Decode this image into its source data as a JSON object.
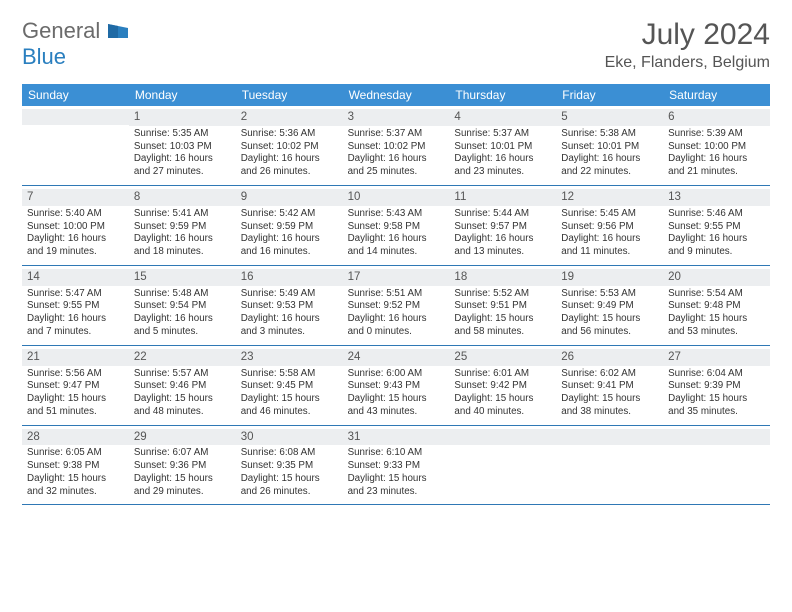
{
  "logo": {
    "text1": "General",
    "text2": "Blue"
  },
  "title": "July 2024",
  "location": "Eke, Flanders, Belgium",
  "weekdays": [
    "Sunday",
    "Monday",
    "Tuesday",
    "Wednesday",
    "Thursday",
    "Friday",
    "Saturday"
  ],
  "colors": {
    "header_bg": "#3b8fd4",
    "header_text": "#ffffff",
    "daynum_bg": "#eceef0",
    "border": "#2f78b5",
    "body_text": "#333333"
  },
  "weeks": [
    [
      null,
      {
        "n": "1",
        "sr": "Sunrise: 5:35 AM",
        "ss": "Sunset: 10:03 PM",
        "d1": "Daylight: 16 hours",
        "d2": "and 27 minutes."
      },
      {
        "n": "2",
        "sr": "Sunrise: 5:36 AM",
        "ss": "Sunset: 10:02 PM",
        "d1": "Daylight: 16 hours",
        "d2": "and 26 minutes."
      },
      {
        "n": "3",
        "sr": "Sunrise: 5:37 AM",
        "ss": "Sunset: 10:02 PM",
        "d1": "Daylight: 16 hours",
        "d2": "and 25 minutes."
      },
      {
        "n": "4",
        "sr": "Sunrise: 5:37 AM",
        "ss": "Sunset: 10:01 PM",
        "d1": "Daylight: 16 hours",
        "d2": "and 23 minutes."
      },
      {
        "n": "5",
        "sr": "Sunrise: 5:38 AM",
        "ss": "Sunset: 10:01 PM",
        "d1": "Daylight: 16 hours",
        "d2": "and 22 minutes."
      },
      {
        "n": "6",
        "sr": "Sunrise: 5:39 AM",
        "ss": "Sunset: 10:00 PM",
        "d1": "Daylight: 16 hours",
        "d2": "and 21 minutes."
      }
    ],
    [
      {
        "n": "7",
        "sr": "Sunrise: 5:40 AM",
        "ss": "Sunset: 10:00 PM",
        "d1": "Daylight: 16 hours",
        "d2": "and 19 minutes."
      },
      {
        "n": "8",
        "sr": "Sunrise: 5:41 AM",
        "ss": "Sunset: 9:59 PM",
        "d1": "Daylight: 16 hours",
        "d2": "and 18 minutes."
      },
      {
        "n": "9",
        "sr": "Sunrise: 5:42 AM",
        "ss": "Sunset: 9:59 PM",
        "d1": "Daylight: 16 hours",
        "d2": "and 16 minutes."
      },
      {
        "n": "10",
        "sr": "Sunrise: 5:43 AM",
        "ss": "Sunset: 9:58 PM",
        "d1": "Daylight: 16 hours",
        "d2": "and 14 minutes."
      },
      {
        "n": "11",
        "sr": "Sunrise: 5:44 AM",
        "ss": "Sunset: 9:57 PM",
        "d1": "Daylight: 16 hours",
        "d2": "and 13 minutes."
      },
      {
        "n": "12",
        "sr": "Sunrise: 5:45 AM",
        "ss": "Sunset: 9:56 PM",
        "d1": "Daylight: 16 hours",
        "d2": "and 11 minutes."
      },
      {
        "n": "13",
        "sr": "Sunrise: 5:46 AM",
        "ss": "Sunset: 9:55 PM",
        "d1": "Daylight: 16 hours",
        "d2": "and 9 minutes."
      }
    ],
    [
      {
        "n": "14",
        "sr": "Sunrise: 5:47 AM",
        "ss": "Sunset: 9:55 PM",
        "d1": "Daylight: 16 hours",
        "d2": "and 7 minutes."
      },
      {
        "n": "15",
        "sr": "Sunrise: 5:48 AM",
        "ss": "Sunset: 9:54 PM",
        "d1": "Daylight: 16 hours",
        "d2": "and 5 minutes."
      },
      {
        "n": "16",
        "sr": "Sunrise: 5:49 AM",
        "ss": "Sunset: 9:53 PM",
        "d1": "Daylight: 16 hours",
        "d2": "and 3 minutes."
      },
      {
        "n": "17",
        "sr": "Sunrise: 5:51 AM",
        "ss": "Sunset: 9:52 PM",
        "d1": "Daylight: 16 hours",
        "d2": "and 0 minutes."
      },
      {
        "n": "18",
        "sr": "Sunrise: 5:52 AM",
        "ss": "Sunset: 9:51 PM",
        "d1": "Daylight: 15 hours",
        "d2": "and 58 minutes."
      },
      {
        "n": "19",
        "sr": "Sunrise: 5:53 AM",
        "ss": "Sunset: 9:49 PM",
        "d1": "Daylight: 15 hours",
        "d2": "and 56 minutes."
      },
      {
        "n": "20",
        "sr": "Sunrise: 5:54 AM",
        "ss": "Sunset: 9:48 PM",
        "d1": "Daylight: 15 hours",
        "d2": "and 53 minutes."
      }
    ],
    [
      {
        "n": "21",
        "sr": "Sunrise: 5:56 AM",
        "ss": "Sunset: 9:47 PM",
        "d1": "Daylight: 15 hours",
        "d2": "and 51 minutes."
      },
      {
        "n": "22",
        "sr": "Sunrise: 5:57 AM",
        "ss": "Sunset: 9:46 PM",
        "d1": "Daylight: 15 hours",
        "d2": "and 48 minutes."
      },
      {
        "n": "23",
        "sr": "Sunrise: 5:58 AM",
        "ss": "Sunset: 9:45 PM",
        "d1": "Daylight: 15 hours",
        "d2": "and 46 minutes."
      },
      {
        "n": "24",
        "sr": "Sunrise: 6:00 AM",
        "ss": "Sunset: 9:43 PM",
        "d1": "Daylight: 15 hours",
        "d2": "and 43 minutes."
      },
      {
        "n": "25",
        "sr": "Sunrise: 6:01 AM",
        "ss": "Sunset: 9:42 PM",
        "d1": "Daylight: 15 hours",
        "d2": "and 40 minutes."
      },
      {
        "n": "26",
        "sr": "Sunrise: 6:02 AM",
        "ss": "Sunset: 9:41 PM",
        "d1": "Daylight: 15 hours",
        "d2": "and 38 minutes."
      },
      {
        "n": "27",
        "sr": "Sunrise: 6:04 AM",
        "ss": "Sunset: 9:39 PM",
        "d1": "Daylight: 15 hours",
        "d2": "and 35 minutes."
      }
    ],
    [
      {
        "n": "28",
        "sr": "Sunrise: 6:05 AM",
        "ss": "Sunset: 9:38 PM",
        "d1": "Daylight: 15 hours",
        "d2": "and 32 minutes."
      },
      {
        "n": "29",
        "sr": "Sunrise: 6:07 AM",
        "ss": "Sunset: 9:36 PM",
        "d1": "Daylight: 15 hours",
        "d2": "and 29 minutes."
      },
      {
        "n": "30",
        "sr": "Sunrise: 6:08 AM",
        "ss": "Sunset: 9:35 PM",
        "d1": "Daylight: 15 hours",
        "d2": "and 26 minutes."
      },
      {
        "n": "31",
        "sr": "Sunrise: 6:10 AM",
        "ss": "Sunset: 9:33 PM",
        "d1": "Daylight: 15 hours",
        "d2": "and 23 minutes."
      },
      null,
      null,
      null
    ]
  ]
}
